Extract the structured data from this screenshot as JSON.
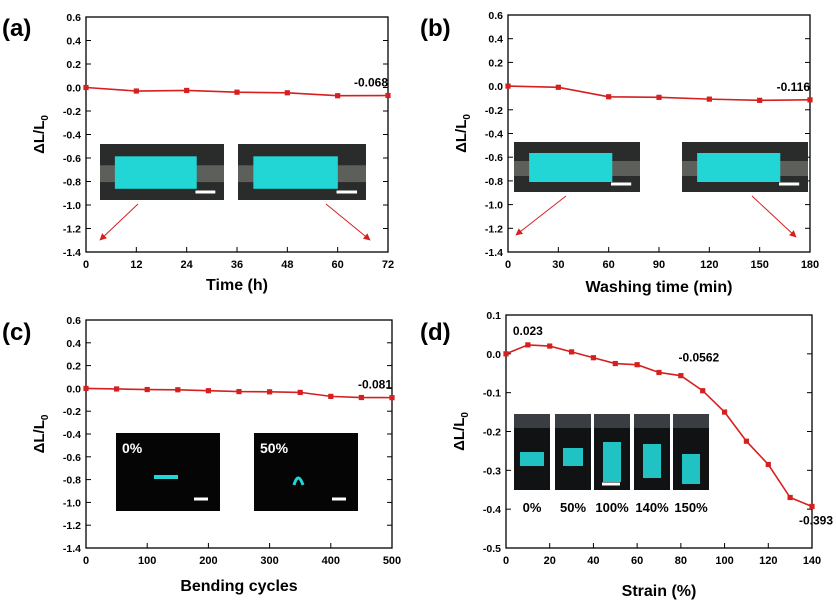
{
  "figure": {
    "background": "#ffffff",
    "series_color": "#d62020",
    "inset_glow": "#22d6d6"
  },
  "chart_data": [
    {
      "type": "line",
      "panel_label": "(a)",
      "xlabel": "Time (h)",
      "ylabel": "ΔL/L",
      "ylabel_sub": "0",
      "xlim": [
        0,
        72
      ],
      "ylim": [
        -1.4,
        0.6
      ],
      "xticks": [
        "0",
        "12",
        "24",
        "36",
        "48",
        "60",
        "72"
      ],
      "yticks": [
        "-1.4",
        "-1.2",
        "-1.0",
        "-0.8",
        "-0.6",
        "-0.4",
        "-0.2",
        "0.0",
        "0.2",
        "0.4",
        "0.6"
      ],
      "series": [
        {
          "x": [
            0,
            12,
            24,
            36,
            48,
            60,
            72
          ],
          "y": [
            0.0,
            -0.03,
            -0.025,
            -0.04,
            -0.045,
            -0.07,
            -0.068
          ]
        }
      ],
      "annotations": [
        {
          "text": "-0.068",
          "x": 72,
          "y": -0.068
        }
      ],
      "inset_labels": [],
      "inset_type": "fabric"
    },
    {
      "type": "line",
      "panel_label": "(b)",
      "xlabel": "Washing time (min)",
      "ylabel": "ΔL/L",
      "ylabel_sub": "0",
      "xlim": [
        0,
        180
      ],
      "ylim": [
        -1.4,
        0.6
      ],
      "xticks": [
        "0",
        "30",
        "60",
        "90",
        "120",
        "150",
        "180"
      ],
      "yticks": [
        "-1.4",
        "-1.2",
        "-1.0",
        "-0.8",
        "-0.6",
        "-0.4",
        "-0.2",
        "0.0",
        "0.2",
        "0.4",
        "0.6"
      ],
      "series": [
        {
          "x": [
            0,
            30,
            60,
            90,
            120,
            150,
            180
          ],
          "y": [
            0.0,
            -0.01,
            -0.09,
            -0.095,
            -0.11,
            -0.12,
            -0.116
          ]
        }
      ],
      "annotations": [
        {
          "text": "-0.116",
          "x": 180,
          "y": -0.116
        }
      ],
      "inset_labels": [],
      "inset_type": "fabric"
    },
    {
      "type": "line",
      "panel_label": "(c)",
      "xlabel": "Bending cycles",
      "ylabel": "ΔL/L",
      "ylabel_sub": "0",
      "xlim": [
        0,
        500
      ],
      "ylim": [
        -1.4,
        0.6
      ],
      "xticks": [
        "0",
        "100",
        "200",
        "300",
        "400",
        "500"
      ],
      "yticks": [
        "-1.4",
        "-1.2",
        "-1.0",
        "-0.8",
        "-0.6",
        "-0.4",
        "-0.2",
        "0.0",
        "0.2",
        "0.4",
        "0.6"
      ],
      "series": [
        {
          "x": [
            0,
            50,
            100,
            150,
            200,
            250,
            300,
            350,
            400,
            450,
            500
          ],
          "y": [
            0.0,
            -0.005,
            -0.01,
            -0.012,
            -0.02,
            -0.028,
            -0.03,
            -0.035,
            -0.07,
            -0.08,
            -0.081
          ]
        }
      ],
      "annotations": [
        {
          "text": "-0.081",
          "x": 500,
          "y": -0.081
        }
      ],
      "inset_labels": [
        "0%",
        "50%"
      ],
      "inset_type": "bend"
    },
    {
      "type": "line",
      "panel_label": "(d)",
      "xlabel": "Strain (%)",
      "ylabel": "ΔL/L",
      "ylabel_sub": "0",
      "xlim": [
        0,
        140
      ],
      "ylim": [
        -0.5,
        0.1
      ],
      "xticks": [
        "0",
        "20",
        "40",
        "60",
        "80",
        "100",
        "120",
        "140"
      ],
      "yticks": [
        "-0.5",
        "-0.4",
        "-0.3",
        "-0.2",
        "-0.1",
        "0.0",
        "0.1"
      ],
      "series": [
        {
          "x": [
            0,
            10,
            20,
            30,
            40,
            50,
            60,
            70,
            80,
            90,
            100,
            110,
            120,
            130,
            140
          ],
          "y": [
            0.0,
            0.023,
            0.02,
            0.005,
            -0.01,
            -0.025,
            -0.028,
            -0.048,
            -0.0562,
            -0.095,
            -0.15,
            -0.225,
            -0.285,
            -0.37,
            -0.393
          ]
        }
      ],
      "annotations": [
        {
          "text": "0.023",
          "x": 10,
          "y": 0.023
        },
        {
          "text": "-0.0562",
          "x": 80,
          "y": -0.0562
        },
        {
          "text": "-0.393",
          "x": 140,
          "y": -0.393
        }
      ],
      "inset_labels": [
        "0%",
        "50%",
        "100%",
        "140%",
        "150%"
      ],
      "inset_type": "strain"
    }
  ]
}
